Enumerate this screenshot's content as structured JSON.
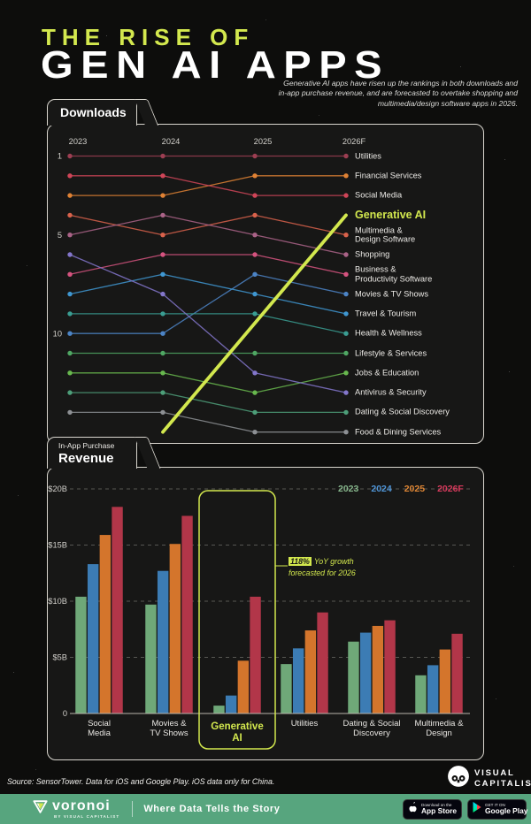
{
  "header": {
    "title_line1": "THE RISE OF",
    "title_line2": "GEN AI APPS",
    "subtitle_lines": [
      "Generative AI apps have risen up the rankings in both downloads and",
      "in-app purchase revenue, and are forecasted to overtake shopping and",
      "multimedia/design software apps in 2026."
    ]
  },
  "downloads_panel": {
    "tab_label": "Downloads"
  },
  "revenue_panel": {
    "tab_line1": "In-App Purchase",
    "tab_line2": "Revenue"
  },
  "accent_color": "#d3e84e",
  "chart_data": [
    {
      "type": "bump",
      "title": "Downloads",
      "x_labels": [
        "2023",
        "2024",
        "2025",
        "2026F"
      ],
      "rank_ticks": [
        1,
        5,
        10
      ],
      "series": [
        {
          "name": "Utilities",
          "label_lines": [
            "Utilities"
          ],
          "color": "#9c3e52",
          "ranks": [
            1,
            1,
            1,
            1
          ]
        },
        {
          "name": "Financial Services",
          "label_lines": [
            "Financial Services"
          ],
          "color": "#e08234",
          "ranks": [
            3,
            3,
            2,
            2
          ]
        },
        {
          "name": "Social Media",
          "label_lines": [
            "Social Media"
          ],
          "color": "#cf4558",
          "ranks": [
            2,
            2,
            3,
            3
          ]
        },
        {
          "name": "Generative AI",
          "label_lines": [
            "Generative AI"
          ],
          "color": "#d3e84e",
          "ranks": [
            null,
            15,
            10,
            4
          ],
          "highlight": true,
          "line_style": "straight"
        },
        {
          "name": "Multimedia & Design Software",
          "label_lines": [
            "Multimedia &",
            "Design Software"
          ],
          "color": "#d9624b",
          "ranks": [
            4,
            5,
            4,
            5
          ]
        },
        {
          "name": "Shopping",
          "label_lines": [
            "Shopping"
          ],
          "color": "#aa6387",
          "ranks": [
            5,
            4,
            5,
            6
          ]
        },
        {
          "name": "Business & Productivity Software",
          "label_lines": [
            "Business &",
            "Productivity Software"
          ],
          "color": "#d5537f",
          "ranks": [
            7,
            6,
            6,
            7
          ]
        },
        {
          "name": "Movies & TV Shows",
          "label_lines": [
            "Movies & TV Shows"
          ],
          "color": "#4c84c6",
          "ranks": [
            10,
            10,
            7,
            8
          ]
        },
        {
          "name": "Travel & Tourism",
          "label_lines": [
            "Travel & Tourism"
          ],
          "color": "#3f97d1",
          "ranks": [
            8,
            7,
            8,
            9
          ]
        },
        {
          "name": "Health & Wellness",
          "label_lines": [
            "Health & Wellness"
          ],
          "color": "#3a9d92",
          "ranks": [
            9,
            9,
            9,
            10
          ]
        },
        {
          "name": "Lifestyle & Services",
          "label_lines": [
            "Lifestyle & Services"
          ],
          "color": "#4fa763",
          "ranks": [
            11,
            11,
            11,
            11
          ]
        },
        {
          "name": "Jobs & Education",
          "label_lines": [
            "Jobs & Education"
          ],
          "color": "#68b84e",
          "ranks": [
            12,
            12,
            13,
            12
          ]
        },
        {
          "name": "Antivirus & Security",
          "label_lines": [
            "Antivirus & Security"
          ],
          "color": "#8376cb",
          "ranks": [
            6,
            8,
            12,
            13
          ]
        },
        {
          "name": "Dating & Social Discovery",
          "label_lines": [
            "Dating & Social Discovery"
          ],
          "color": "#4d9e79",
          "ranks": [
            13,
            13,
            14,
            14
          ]
        },
        {
          "name": "Food & Dining Services",
          "label_lines": [
            "Food & Dining Services"
          ],
          "color": "#8d9094",
          "ranks": [
            14,
            14,
            15,
            15
          ]
        }
      ]
    },
    {
      "type": "bar",
      "title": "In-App Purchase Revenue",
      "unit": "$B",
      "ylim": [
        0,
        20
      ],
      "y_ticks": [
        {
          "value": 20,
          "label": "$20B"
        },
        {
          "value": 15,
          "label": "$15B"
        },
        {
          "value": 10,
          "label": "$10B"
        },
        {
          "value": 5,
          "label": "$5B"
        },
        {
          "value": 0,
          "label": "0"
        }
      ],
      "categories": [
        {
          "name": "Social Media",
          "lines": [
            "Social",
            "Media"
          ]
        },
        {
          "name": "Movies & TV Shows",
          "lines": [
            "Movies &",
            "TV Shows"
          ]
        },
        {
          "name": "Generative AI",
          "lines": [
            "Generative",
            "AI"
          ],
          "highlight": true
        },
        {
          "name": "Utilities",
          "lines": [
            "Utilities"
          ]
        },
        {
          "name": "Dating & Social Discovery",
          "lines": [
            "Dating & Social",
            "Discovery"
          ]
        },
        {
          "name": "Multimedia & Design",
          "lines": [
            "Multimedia &",
            "Design"
          ]
        }
      ],
      "series": [
        {
          "name": "2023",
          "color": "#6fa878",
          "legend_color": "#86b58b",
          "values": [
            10.4,
            9.7,
            0.7,
            4.4,
            6.4,
            3.4
          ]
        },
        {
          "name": "2024",
          "color": "#3c7cb4",
          "legend_color": "#4f94d6",
          "values": [
            13.3,
            12.7,
            1.6,
            5.8,
            7.2,
            4.3
          ]
        },
        {
          "name": "2025",
          "color": "#d4752c",
          "legend_color": "#de8635",
          "values": [
            15.9,
            15.1,
            4.7,
            7.4,
            7.8,
            5.7
          ]
        },
        {
          "name": "2026F",
          "color": "#b23649",
          "legend_color": "#d63a5c",
          "values": [
            18.4,
            17.6,
            10.4,
            9.0,
            8.3,
            7.1
          ]
        }
      ],
      "annotation": {
        "highlight": "118%",
        "line1_rest": "YoY growth",
        "line2": "forecasted for 2026"
      }
    }
  ],
  "footer": {
    "source": "Source: SensorTower.  Data for iOS and Google Play. iOS data only for China.",
    "visual_capitalist": {
      "line1": "VISUAL",
      "line2": "CAPITALIST"
    },
    "brand": {
      "name": "voronoi",
      "byline": "BY VISUAL CAPITALIST",
      "tagline": "Where Data Tells the Story",
      "appstore": {
        "top": "Download on the",
        "bottom": "App Store"
      },
      "googleplay": {
        "top": "GET IT ON",
        "bottom": "Google Play"
      }
    }
  }
}
